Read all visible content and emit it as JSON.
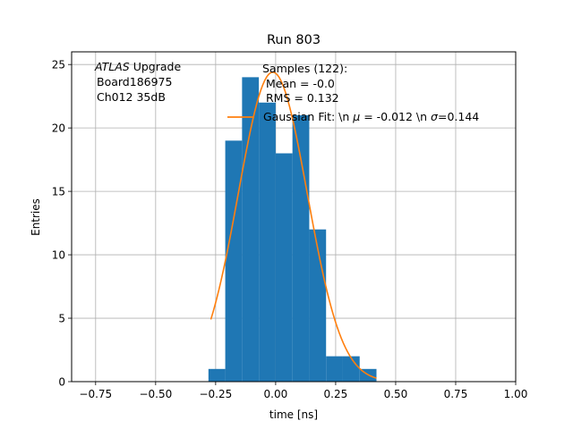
{
  "chart_data": {
    "type": "bar",
    "title": "Run 803",
    "xlabel": "time [ns]",
    "ylabel": "Entries",
    "xlim": [
      -0.85,
      1.0
    ],
    "ylim": [
      0,
      26
    ],
    "grid": true,
    "xticks": [
      -0.75,
      -0.5,
      -0.25,
      0.0,
      0.25,
      0.5,
      0.75,
      1.0
    ],
    "xtick_labels": [
      "−0.75",
      "−0.50",
      "−0.25",
      "0.00",
      "0.25",
      "0.50",
      "0.75",
      "1.00"
    ],
    "yticks": [
      0,
      5,
      10,
      15,
      20,
      25
    ],
    "ytick_labels": [
      "0",
      "5",
      "10",
      "15",
      "20",
      "25"
    ],
    "histogram": {
      "color": "#1f77b4",
      "bins": [
        {
          "x0": -0.28,
          "x1": -0.21,
          "value": 1
        },
        {
          "x0": -0.21,
          "x1": -0.14,
          "value": 19
        },
        {
          "x0": -0.14,
          "x1": -0.07,
          "value": 24
        },
        {
          "x0": -0.07,
          "x1": 0.0,
          "value": 22
        },
        {
          "x0": 0.0,
          "x1": 0.07,
          "value": 18
        },
        {
          "x0": 0.07,
          "x1": 0.14,
          "value": 21
        },
        {
          "x0": 0.14,
          "x1": 0.21,
          "value": 12
        },
        {
          "x0": 0.21,
          "x1": 0.28,
          "value": 2
        },
        {
          "x0": 0.28,
          "x1": 0.35,
          "value": 2
        },
        {
          "x0": 0.35,
          "x1": 0.42,
          "value": 1
        }
      ]
    },
    "fit": {
      "color": "#ff7f0e",
      "mu": -0.012,
      "sigma": 0.144,
      "amplitude": 24.4,
      "x_range": [
        -0.27,
        0.42
      ]
    },
    "legend": {
      "position": "top-right",
      "samples_title": "Samples (122):",
      "samples_mean": "Mean = -0.0",
      "samples_rms": "RMS = 0.132",
      "fit_label_prefix": "Gaussian Fit: \\n ",
      "fit_label_mu_symbol": "μ",
      "fit_label_mu_value": " = -0.012 \\n ",
      "fit_label_sigma_symbol": "σ",
      "fit_label_sigma_value": "=0.144"
    },
    "annotation": {
      "experiment": "ATLAS",
      "experiment_suffix": " Upgrade",
      "board": "Board186975",
      "channel": "Ch012 35dB"
    }
  }
}
